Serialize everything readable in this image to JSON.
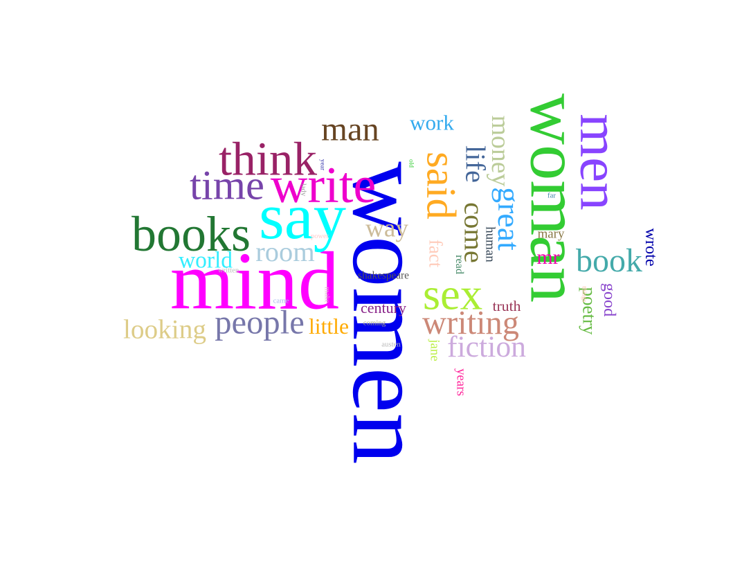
{
  "words": [
    {
      "text": "women",
      "color": "#0000ee"
    },
    {
      "text": "woman",
      "color": "#33cc33"
    },
    {
      "text": "men",
      "color": "#8844ff"
    },
    {
      "text": "mind",
      "color": "#ff00ff"
    },
    {
      "text": "said",
      "color": "#ffaa22"
    },
    {
      "text": "say",
      "color": "#00ffff"
    },
    {
      "text": "write",
      "color": "#ee00cc"
    },
    {
      "text": "think",
      "color": "#992266"
    },
    {
      "text": "time",
      "color": "#7744aa"
    },
    {
      "text": "books",
      "color": "#227733"
    },
    {
      "text": "great",
      "color": "#33aaff"
    },
    {
      "text": "life",
      "color": "#446699"
    },
    {
      "text": "come",
      "color": "#777733"
    },
    {
      "text": "money",
      "color": "#bbcc99"
    },
    {
      "text": "man",
      "color": "#664422"
    },
    {
      "text": "work",
      "color": "#33aaee"
    },
    {
      "text": "sex",
      "color": "#aaee33"
    },
    {
      "text": "book",
      "color": "#44aaaa"
    },
    {
      "text": "people",
      "color": "#7777aa"
    },
    {
      "text": "room",
      "color": "#aaccdd"
    },
    {
      "text": "looking",
      "color": "#ddcc88"
    },
    {
      "text": "writing",
      "color": "#cc8877"
    },
    {
      "text": "fiction",
      "color": "#ccaadd"
    },
    {
      "text": "way",
      "color": "#ccbb99"
    },
    {
      "text": "fact",
      "color": "#ffccbb"
    },
    {
      "text": "world",
      "color": "#33eeff"
    },
    {
      "text": "poetry",
      "color": "#66bb44"
    },
    {
      "text": "good",
      "color": "#8844cc"
    },
    {
      "text": "wrote",
      "color": "#0000aa"
    },
    {
      "text": "human",
      "color": "#334455"
    },
    {
      "text": "read",
      "color": "#448866"
    },
    {
      "text": "mr",
      "color": "#ee00aa"
    },
    {
      "text": "mary",
      "color": "#887744"
    },
    {
      "text": "little",
      "color": "#ffaa00"
    },
    {
      "text": "century",
      "color": "#882288"
    },
    {
      "text": "truth",
      "color": "#993355"
    },
    {
      "text": "jane",
      "color": "#bbee44"
    },
    {
      "text": "years",
      "color": "#ff2299"
    },
    {
      "text": "shakespeare",
      "color": "#555555"
    },
    {
      "text": "far",
      "color": "#4488aa"
    },
    {
      "text": "power",
      "color": "#ffcccc"
    },
    {
      "text": "written",
      "color": "#bbbbbb"
    },
    {
      "text": "came",
      "color": "#aabbee"
    },
    {
      "text": "make",
      "color": "#ddbbcc"
    },
    {
      "text": "lady",
      "color": "#999999"
    },
    {
      "text": "coming",
      "color": "#aaaa88"
    },
    {
      "text": "austen",
      "color": "#bbbbbb"
    },
    {
      "text": "old",
      "color": "#33cc33"
    },
    {
      "text": "year",
      "color": "#3333aa"
    },
    {
      "text": "things",
      "color": "#ffbbaa"
    }
  ]
}
